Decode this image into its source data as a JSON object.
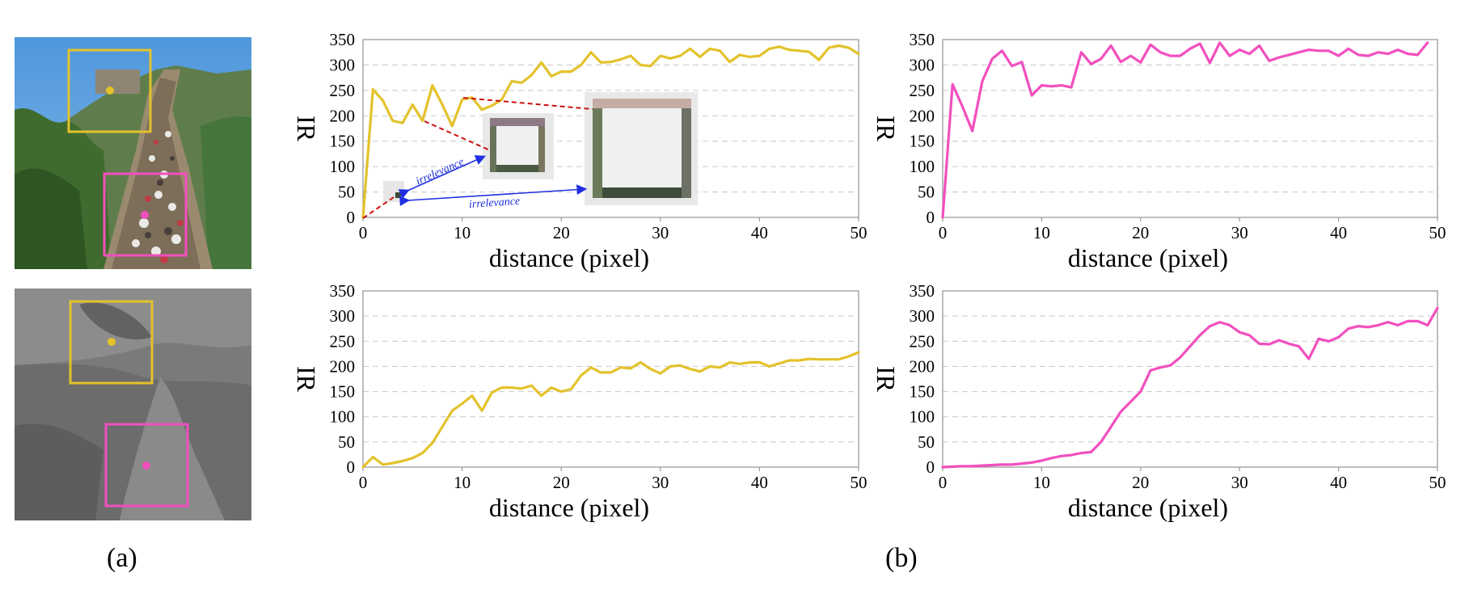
{
  "captions": {
    "a": "(a)",
    "b": "(b)"
  },
  "colors": {
    "yellow": "#E3C22C",
    "pink": "#F24FBE",
    "axis": "#9a9a9a",
    "grid": "#c8c8c8",
    "arrow": "#1f2fe0",
    "link": "#cc1111"
  },
  "annotations": {
    "irrelevance_1": "irrelevance",
    "irrelevance_2": "irrelevance"
  },
  "chart_data": [
    {
      "type": "line",
      "panel": "top-left",
      "xlabel": "distance (pixel)",
      "ylabel": "IR",
      "xlim": [
        0,
        50
      ],
      "ylim": [
        0,
        350
      ],
      "xticks": [
        0,
        10,
        20,
        30,
        40,
        50
      ],
      "yticks": [
        0,
        50,
        100,
        150,
        200,
        250,
        300,
        350
      ],
      "grid": "horizontal dashed",
      "color": "#E3C22C",
      "x": [
        0,
        1,
        2,
        3,
        4,
        5,
        6,
        7,
        8,
        9,
        10,
        11,
        12,
        13,
        14,
        15,
        16,
        17,
        18,
        19,
        20,
        21,
        22,
        23,
        24,
        25,
        26,
        27,
        28,
        29,
        30,
        31,
        32,
        33,
        34,
        35,
        36,
        37,
        38,
        39,
        40,
        41,
        42,
        43,
        44,
        45,
        46,
        47,
        48,
        49,
        50
      ],
      "y": [
        0,
        252,
        230,
        190,
        186,
        222,
        190,
        260,
        222,
        180,
        232,
        236,
        212,
        220,
        232,
        268,
        265,
        280,
        305,
        278,
        287,
        287,
        300,
        325,
        305,
        306,
        311,
        318,
        300,
        298,
        318,
        313,
        318,
        332,
        316,
        332,
        328,
        306,
        320,
        316,
        318,
        332,
        336,
        330,
        328,
        326,
        310,
        334,
        338,
        334,
        322
      ]
    },
    {
      "type": "line",
      "panel": "top-right",
      "xlabel": "distance (pixel)",
      "ylabel": "IR",
      "xlim": [
        0,
        50
      ],
      "ylim": [
        0,
        350
      ],
      "xticks": [
        0,
        10,
        20,
        30,
        40,
        50
      ],
      "yticks": [
        0,
        50,
        100,
        150,
        200,
        250,
        300,
        350
      ],
      "grid": "horizontal dashed",
      "color": "#F24FBE",
      "x": [
        0,
        1,
        2,
        3,
        4,
        5,
        6,
        7,
        8,
        9,
        10,
        11,
        12,
        13,
        14,
        15,
        16,
        17,
        18,
        19,
        20,
        21,
        22,
        23,
        24,
        25,
        26,
        27,
        28,
        29,
        30,
        31,
        32,
        33,
        34,
        35,
        36,
        37,
        38,
        39,
        40,
        41,
        42,
        43,
        44,
        45,
        46,
        47,
        48,
        49
      ],
      "y": [
        0,
        262,
        218,
        170,
        268,
        312,
        328,
        298,
        306,
        240,
        260,
        258,
        260,
        256,
        325,
        302,
        312,
        338,
        306,
        318,
        305,
        340,
        325,
        318,
        318,
        332,
        342,
        304,
        344,
        318,
        330,
        322,
        338,
        308,
        315,
        320,
        325,
        330,
        328,
        328,
        318,
        332,
        320,
        318,
        325,
        322,
        330,
        322,
        320,
        344
      ]
    },
    {
      "type": "line",
      "panel": "bottom-left",
      "xlabel": "distance (pixel)",
      "ylabel": "IR",
      "xlim": [
        0,
        50
      ],
      "ylim": [
        0,
        350
      ],
      "xticks": [
        0,
        10,
        20,
        30,
        40,
        50
      ],
      "yticks": [
        0,
        50,
        100,
        150,
        200,
        250,
        300,
        350
      ],
      "grid": "horizontal dashed",
      "color": "#E3C22C",
      "x": [
        0,
        1,
        2,
        3,
        4,
        5,
        6,
        7,
        8,
        9,
        10,
        11,
        12,
        13,
        14,
        15,
        16,
        17,
        18,
        19,
        20,
        21,
        22,
        23,
        24,
        25,
        26,
        27,
        28,
        29,
        30,
        31,
        32,
        33,
        34,
        35,
        36,
        37,
        38,
        39,
        40,
        41,
        42,
        43,
        44,
        45,
        46,
        47,
        48,
        49,
        50
      ],
      "y": [
        0,
        20,
        5,
        8,
        12,
        18,
        28,
        48,
        80,
        112,
        126,
        142,
        112,
        148,
        158,
        158,
        156,
        162,
        142,
        158,
        150,
        155,
        182,
        198,
        188,
        188,
        198,
        196,
        208,
        195,
        186,
        200,
        202,
        195,
        190,
        200,
        198,
        208,
        205,
        208,
        208,
        200,
        206,
        212,
        212,
        215,
        214,
        214,
        214,
        220,
        228
      ]
    },
    {
      "type": "line",
      "panel": "bottom-right",
      "xlabel": "distance (pixel)",
      "ylabel": "IR",
      "xlim": [
        0,
        50
      ],
      "ylim": [
        0,
        350
      ],
      "xticks": [
        0,
        10,
        20,
        30,
        40,
        50
      ],
      "yticks": [
        0,
        50,
        100,
        150,
        200,
        250,
        300,
        350
      ],
      "grid": "horizontal dashed",
      "color": "#F24FBE",
      "x": [
        0,
        1,
        2,
        3,
        4,
        5,
        6,
        7,
        8,
        9,
        10,
        11,
        12,
        13,
        14,
        15,
        16,
        17,
        18,
        19,
        20,
        21,
        22,
        23,
        24,
        25,
        26,
        27,
        28,
        29,
        30,
        31,
        32,
        33,
        34,
        35,
        36,
        37,
        38,
        39,
        40,
        41,
        42,
        43,
        44,
        45,
        46,
        47,
        48,
        49,
        50
      ],
      "y": [
        0,
        1,
        2,
        2,
        3,
        4,
        5,
        5,
        7,
        9,
        13,
        18,
        22,
        24,
        28,
        30,
        50,
        80,
        110,
        130,
        150,
        192,
        198,
        202,
        218,
        240,
        262,
        280,
        288,
        282,
        268,
        262,
        245,
        244,
        252,
        245,
        240,
        215,
        255,
        250,
        258,
        275,
        280,
        278,
        282,
        288,
        282,
        290,
        290,
        282,
        316
      ]
    }
  ]
}
